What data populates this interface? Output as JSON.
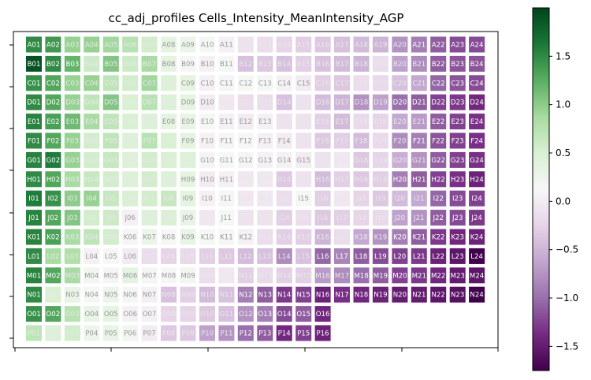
{
  "chart_data": {
    "type": "heatmap",
    "title": "cc_adj_profiles Cells_Intensity_MeanIntensity_AGP",
    "rows": [
      "A",
      "B",
      "C",
      "D",
      "E",
      "F",
      "G",
      "H",
      "I",
      "J",
      "K",
      "L",
      "M",
      "N",
      "O",
      "P"
    ],
    "columns": [
      "01",
      "02",
      "03",
      "04",
      "05",
      "06",
      "07",
      "08",
      "09",
      "10",
      "11",
      "12",
      "13",
      "14",
      "15",
      "16",
      "17",
      "18",
      "19",
      "20",
      "21",
      "22",
      "23",
      "24"
    ],
    "colormap": "PRGn",
    "vmin": -1.75,
    "vmax": 2.0,
    "colorbar_ticks": [
      "1.5",
      "1.0",
      "0.5",
      "0.0",
      "−0.5",
      "−1.0",
      "−1.5"
    ],
    "colorbar_tick_values": [
      1.5,
      1.0,
      0.5,
      0.0,
      -0.5,
      -1.0,
      -1.5
    ],
    "missing_wells": [
      "O17",
      "O18",
      "O19",
      "O20",
      "O21",
      "O22",
      "O23",
      "O24",
      "P17",
      "P18",
      "P19",
      "P20",
      "P21",
      "P22",
      "P23",
      "P24"
    ],
    "values": [
      [
        1.5,
        1.4,
        0.95,
        0.95,
        0.9,
        0.75,
        0.55,
        0.35,
        0.25,
        0.15,
        0.05,
        -0.1,
        -0.15,
        -0.25,
        -0.3,
        -0.35,
        -0.4,
        -0.45,
        -0.5,
        -0.75,
        -0.9,
        -1.1,
        -1.2,
        -1.2
      ],
      [
        1.9,
        1.5,
        1.2,
        0.6,
        1.05,
        0.6,
        0.85,
        0.35,
        0.1,
        0.05,
        0.15,
        -0.4,
        -0.35,
        -0.4,
        -0.3,
        -0.4,
        -0.45,
        -0.5,
        -0.15,
        -0.65,
        -0.8,
        -1.1,
        -1.15,
        -1.15
      ],
      [
        1.45,
        1.3,
        0.95,
        0.95,
        0.7,
        0.55,
        0.9,
        0.45,
        0.35,
        0.05,
        0.1,
        0.15,
        0.1,
        0.05,
        0.0,
        -0.3,
        -0.35,
        -0.15,
        -0.2,
        -0.4,
        -0.6,
        -1.05,
        -1.15,
        -1.2
      ],
      [
        1.5,
        1.3,
        0.95,
        0.7,
        1.05,
        0.5,
        0.75,
        0.45,
        0.35,
        0.0,
        -0.05,
        -0.15,
        -0.15,
        -0.4,
        -0.1,
        -0.45,
        -0.5,
        -0.75,
        -0.65,
        -1.0,
        -1.1,
        -1.25,
        -1.3,
        -1.4
      ],
      [
        1.55,
        1.35,
        1.15,
        0.85,
        0.7,
        0.5,
        0.45,
        0.35,
        0.3,
        0.15,
        0.05,
        0.0,
        0.05,
        -0.1,
        -0.1,
        -0.3,
        -0.45,
        -0.2,
        -0.25,
        -0.6,
        -0.7,
        -1.1,
        -1.25,
        -1.35
      ],
      [
        1.5,
        1.3,
        0.95,
        0.55,
        0.7,
        0.45,
        0.75,
        0.5,
        0.35,
        0.05,
        0.1,
        0.15,
        0.05,
        0.0,
        -0.1,
        -0.35,
        -0.3,
        -0.45,
        -0.2,
        -0.8,
        -0.9,
        -1.15,
        -1.25,
        -1.35
      ],
      [
        1.55,
        1.6,
        0.95,
        0.55,
        0.65,
        0.45,
        0.55,
        0.5,
        0.45,
        0.1,
        0.15,
        0.1,
        0.05,
        0.05,
        0.0,
        -0.1,
        -0.05,
        -0.35,
        -0.25,
        -0.55,
        -0.75,
        -1.1,
        -1.25,
        -1.35
      ],
      [
        1.5,
        1.3,
        0.85,
        0.65,
        0.55,
        0.45,
        0.55,
        0.45,
        0.35,
        0.0,
        0.05,
        -0.05,
        -0.05,
        -0.35,
        -0.1,
        -0.45,
        -0.3,
        -0.35,
        -0.3,
        -0.9,
        -1.1,
        -1.25,
        -1.35,
        -1.45
      ],
      [
        1.6,
        1.45,
        1.0,
        0.95,
        0.65,
        0.5,
        0.55,
        0.65,
        0.35,
        0.05,
        0.1,
        -0.05,
        -0.05,
        -0.15,
        0.15,
        -0.3,
        -0.05,
        -0.25,
        -0.35,
        -0.45,
        -0.6,
        -1.05,
        -1.2,
        -1.25
      ],
      [
        1.55,
        1.3,
        1.05,
        0.55,
        0.6,
        0.05,
        0.45,
        0.5,
        0.3,
        -0.05,
        0.15,
        -0.1,
        -0.1,
        -0.3,
        -0.15,
        -0.35,
        -0.3,
        -0.25,
        -0.2,
        -0.65,
        -0.75,
        -1.1,
        -1.2,
        -1.3
      ],
      [
        1.55,
        1.35,
        0.85,
        0.7,
        0.55,
        0.1,
        0.25,
        0.15,
        0.3,
        0.15,
        0.1,
        0.05,
        -0.15,
        -0.3,
        -0.3,
        -0.5,
        -0.15,
        -0.6,
        -0.75,
        -0.9,
        -1.1,
        -1.3,
        -1.4,
        -1.45
      ],
      [
        1.5,
        0.85,
        0.8,
        0.05,
        0.15,
        0.0,
        -0.15,
        -0.25,
        -0.2,
        -0.3,
        -0.35,
        -0.45,
        -0.4,
        -0.8,
        -0.4,
        -1.05,
        -0.85,
        -1.1,
        -1.2,
        -1.25,
        -1.3,
        -1.45,
        -1.55,
        -1.75
      ],
      [
        1.55,
        1.3,
        0.85,
        0.2,
        0.1,
        0.35,
        0.1,
        0.15,
        0.2,
        -0.15,
        -0.05,
        -0.3,
        -0.2,
        -0.3,
        -0.3,
        -0.7,
        -0.8,
        -1.0,
        -1.1,
        -1.25,
        -1.3,
        -1.4,
        -1.5,
        -1.55
      ],
      [
        1.5,
        0.5,
        0.3,
        0.15,
        0.25,
        0.1,
        0.05,
        -0.4,
        -0.3,
        -0.45,
        -0.4,
        -0.9,
        -1.1,
        -1.3,
        -1.25,
        -1.45,
        -1.35,
        -1.4,
        -1.45,
        -1.5,
        -1.5,
        -1.55,
        -1.6,
        -1.75
      ],
      [
        1.45,
        1.3,
        0.75,
        0.3,
        0.35,
        0.05,
        0.05,
        -0.25,
        -0.25,
        -0.35,
        -0.4,
        -0.75,
        -0.9,
        -1.2,
        -1.1,
        -1.4,
        null,
        null,
        null,
        null,
        null,
        null,
        null,
        null
      ],
      [
        0.7,
        0.45,
        0.55,
        0.25,
        0.3,
        0.2,
        0.0,
        -0.35,
        -0.35,
        -0.65,
        -0.75,
        -1.0,
        -1.1,
        -1.4,
        -1.25,
        -1.45,
        null,
        null,
        null,
        null,
        null,
        null,
        null,
        null
      ]
    ]
  }
}
